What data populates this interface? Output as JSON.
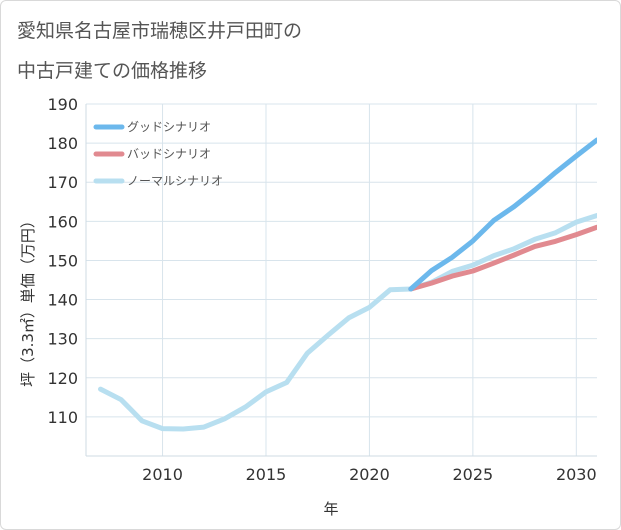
{
  "chart_data": {
    "type": "line",
    "title": [
      "愛知県名古屋市瑞穂区井戸田町の",
      "中古戸建ての価格推移"
    ],
    "xlabel": "年",
    "ylabel": "坪（3.3㎡）単価（万円）",
    "xlim": [
      2006.3,
      2031
    ],
    "ylim": [
      100,
      190
    ],
    "x_ticks": [
      2010,
      2015,
      2020,
      2025,
      2030
    ],
    "y_ticks": [
      110,
      120,
      130,
      140,
      150,
      160,
      170,
      180,
      190
    ],
    "grid": true,
    "legend_position": "top-left",
    "series": [
      {
        "name": "グッドシナリオ",
        "color": "#6cb8ec",
        "x": [
          2022,
          2023,
          2024,
          2025,
          2026,
          2027,
          2028,
          2029,
          2030,
          2031
        ],
        "y": [
          142.7,
          147.4,
          150.8,
          155.0,
          160.2,
          163.8,
          168.0,
          172.5,
          176.7,
          180.8
        ]
      },
      {
        "name": "バッドシナリオ",
        "color": "#e18a90",
        "x": [
          2022,
          2023,
          2024,
          2025,
          2026,
          2027,
          2028,
          2029,
          2030,
          2031
        ],
        "y": [
          142.7,
          144.2,
          146.0,
          147.3,
          149.3,
          151.4,
          153.6,
          154.9,
          156.6,
          158.5
        ]
      },
      {
        "name": "ノーマルシナリオ",
        "color": "#b8dff0",
        "x": [
          2007,
          2008,
          2009,
          2010,
          2011,
          2012,
          2013,
          2014,
          2015,
          2016,
          2017,
          2018,
          2019,
          2020,
          2021,
          2022,
          2023,
          2024,
          2025,
          2026,
          2027,
          2028,
          2029,
          2030,
          2031
        ],
        "y": [
          117.1,
          114.4,
          109.0,
          107.0,
          106.9,
          107.4,
          109.5,
          112.5,
          116.4,
          118.8,
          126.3,
          130.9,
          135.3,
          138.0,
          142.5,
          142.7,
          144.4,
          147.2,
          148.8,
          151.2,
          153.0,
          155.4,
          157.1,
          159.8,
          161.5
        ]
      }
    ]
  }
}
